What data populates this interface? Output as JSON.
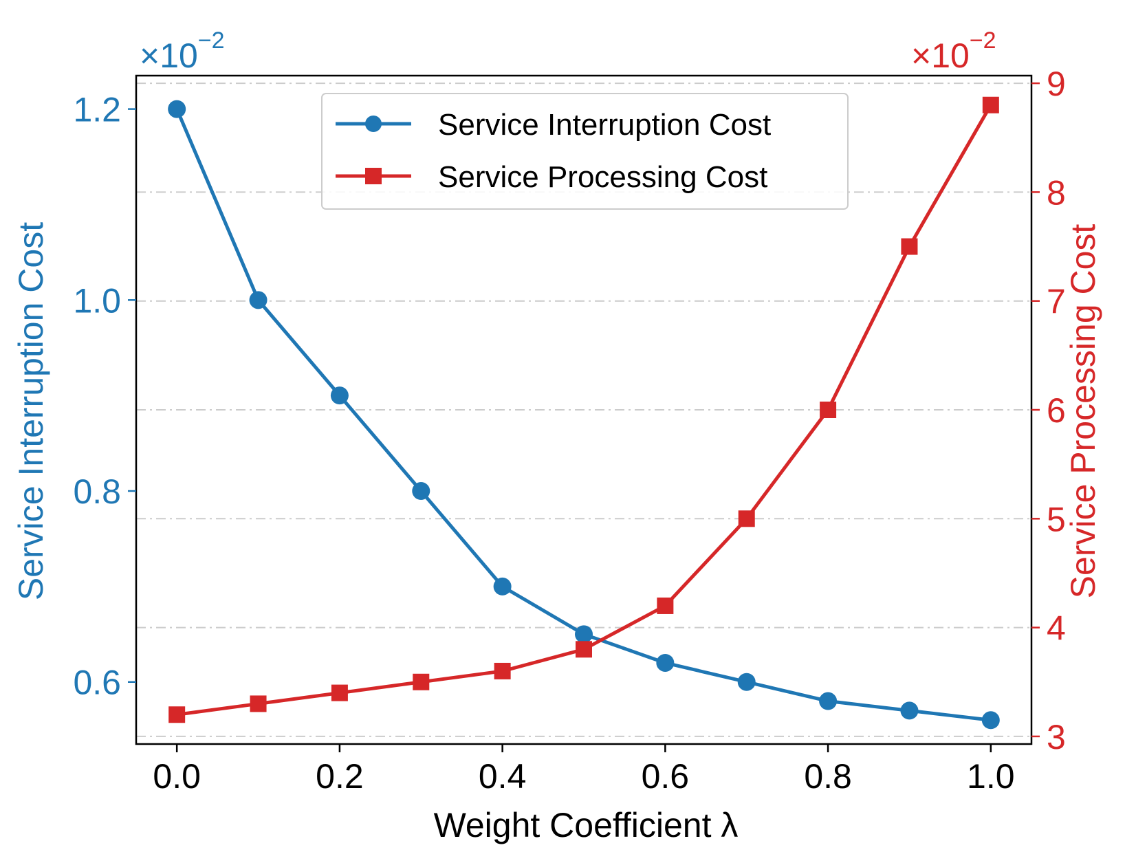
{
  "colors": {
    "left_series": "#1f77b4",
    "right_series": "#d62728",
    "axis": "#000000",
    "grid": "#cccccc"
  },
  "chart_data": {
    "type": "line",
    "xlabel": "Weight Coefficient λ",
    "x": [
      0.0,
      0.1,
      0.2,
      0.3,
      0.4,
      0.5,
      0.6,
      0.7,
      0.8,
      0.9,
      1.0
    ],
    "x_ticks": [
      "0.0",
      "0.2",
      "0.4",
      "0.6",
      "0.8",
      "1.0"
    ],
    "x_tick_values": [
      0.0,
      0.2,
      0.4,
      0.6,
      0.8,
      1.0
    ],
    "xlim": [
      -0.05,
      1.05
    ],
    "grid": "horizontal dash-dot",
    "legend": "upper center",
    "left_axis": {
      "label": "Service Interruption Cost",
      "multiplier": "×10",
      "exponent": "−2",
      "ylim": [
        0.535,
        1.235
      ],
      "ticks": [
        "0.6",
        "0.8",
        "1.0",
        "1.2"
      ],
      "tick_values": [
        0.6,
        0.8,
        1.0,
        1.2
      ]
    },
    "right_axis": {
      "label": "Service Processing Cost",
      "multiplier": "×10",
      "exponent": "−2",
      "ylim": [
        2.93,
        9.07
      ],
      "ticks": [
        "3",
        "4",
        "5",
        "6",
        "7",
        "8",
        "9"
      ],
      "tick_values": [
        3,
        4,
        5,
        6,
        7,
        8,
        9
      ]
    },
    "series": [
      {
        "name": "Service Interruption Cost",
        "axis": "left",
        "marker": "circle",
        "values": [
          1.2,
          1.0,
          0.9,
          0.8,
          0.7,
          0.65,
          0.62,
          0.6,
          0.58,
          0.57,
          0.56
        ]
      },
      {
        "name": "Service Processing Cost",
        "axis": "right",
        "marker": "square",
        "values": [
          3.2,
          3.3,
          3.4,
          3.5,
          3.6,
          3.8,
          4.2,
          5.0,
          6.0,
          7.5,
          8.8
        ]
      }
    ]
  }
}
